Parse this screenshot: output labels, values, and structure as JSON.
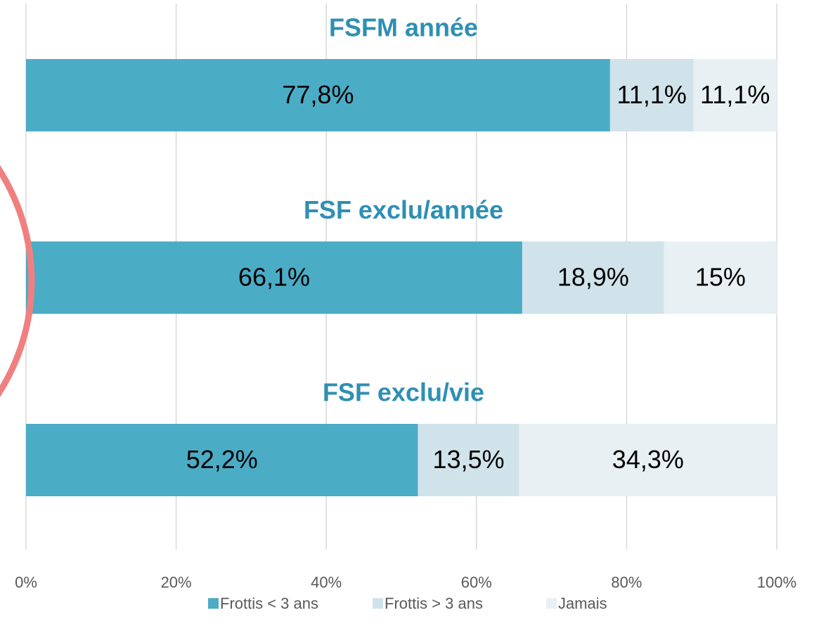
{
  "chart_data": {
    "type": "stacked-barh",
    "categories": [
      "FSFM année",
      "FSF exclu/année",
      "FSF exclu/vie"
    ],
    "series": [
      {
        "name": "Frottis < 3 ans",
        "color": "#4bacc6",
        "values": [
          77.8,
          66.1,
          52.2
        ],
        "value_labels": [
          "77,8%",
          "66,1%",
          "52,2%"
        ]
      },
      {
        "name": "Frottis > 3 ans",
        "color": "#d0e3ea",
        "values": [
          11.1,
          18.9,
          13.5
        ],
        "value_labels": [
          "11,1%",
          "18,9%",
          "13,5%"
        ]
      },
      {
        "name": "Jamais",
        "color": "#e8f0f4",
        "values": [
          11.1,
          15,
          34.3
        ],
        "value_labels": [
          "11,1%",
          "15%",
          "34,3%"
        ]
      }
    ],
    "xlim": [
      0,
      100
    ],
    "xticks": [
      {
        "value": 0,
        "label": "0%"
      },
      {
        "value": 20,
        "label": "20%"
      },
      {
        "value": 40,
        "label": "40%"
      },
      {
        "value": 60,
        "label": "60%"
      },
      {
        "value": 80,
        "label": "80%"
      },
      {
        "value": 100,
        "label": "100%"
      }
    ],
    "grid": true,
    "legend": "bottom"
  }
}
